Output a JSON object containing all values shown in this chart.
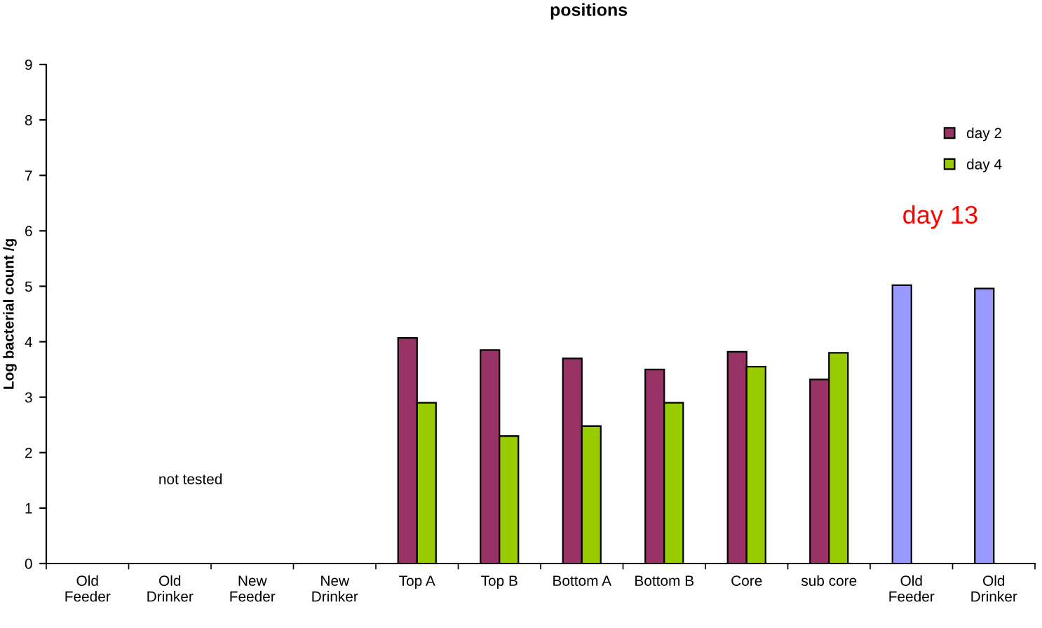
{
  "chart_data": {
    "type": "bar",
    "title": "positions",
    "ylabel": "Log bacterial count /g",
    "categories": [
      "Old\nFeeder",
      "Old\nDrinker",
      "New\nFeeder",
      "New\nDrinker",
      "Top A",
      "Top B",
      "Bottom A",
      "Bottom B",
      "Core",
      "sub core",
      "Old\nFeeder",
      "Old\nDrinker"
    ],
    "series": [
      {
        "name": "day 2",
        "color": "#993366",
        "values": [
          null,
          null,
          null,
          null,
          4.07,
          3.85,
          3.7,
          3.5,
          3.82,
          3.32,
          null,
          null
        ]
      },
      {
        "name": "day 4",
        "color": "#99cc00",
        "values": [
          null,
          null,
          null,
          null,
          2.9,
          2.3,
          2.48,
          2.9,
          3.55,
          3.8,
          null,
          null
        ]
      },
      {
        "color": "#9999ff",
        "values": [
          null,
          null,
          null,
          null,
          null,
          null,
          null,
          null,
          null,
          null,
          5.02,
          4.96
        ]
      }
    ],
    "annotations": [
      "day 13",
      "not tested"
    ],
    "ylim": [
      0,
      9
    ],
    "yticks": [
      0,
      1,
      2,
      3,
      4,
      5,
      6,
      7,
      8,
      9
    ],
    "grid": false,
    "legend": "top right"
  }
}
